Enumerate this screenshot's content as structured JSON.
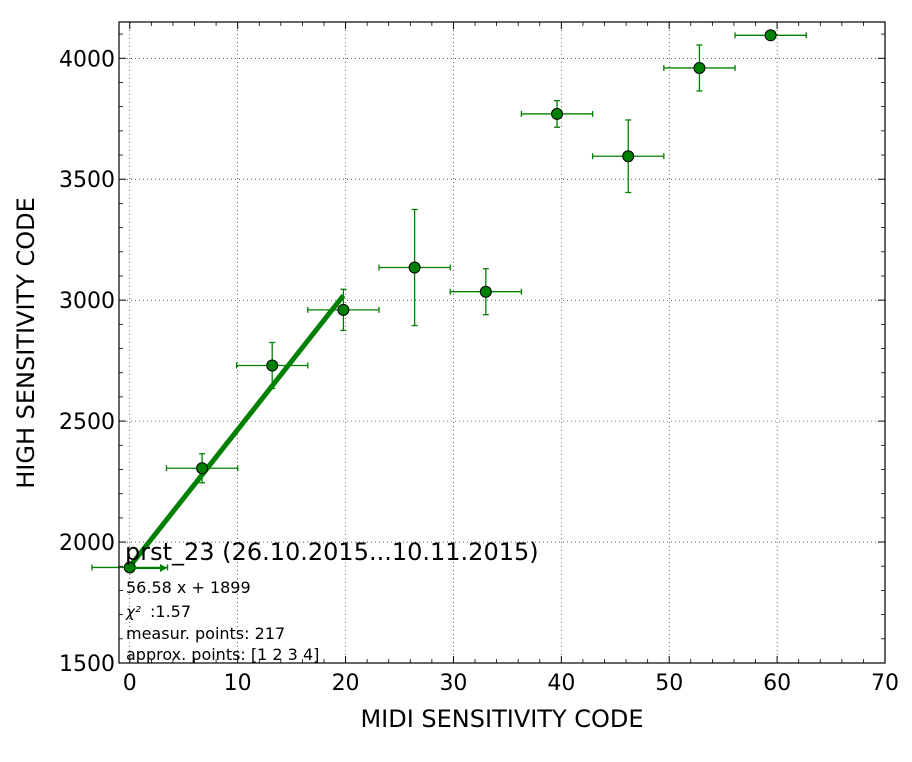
{
  "chart_data": {
    "type": "scatter",
    "title": "prst_23 (26.10.2015...10.11.2015)",
    "xlabel": "MIDI SENSITIVITY CODE",
    "ylabel": "HIGH SENSITIVITY CODE",
    "xlim": [
      -1,
      70
    ],
    "ylim": [
      1500,
      4150
    ],
    "xticks": [
      0,
      10,
      20,
      30,
      40,
      50,
      60,
      70
    ],
    "yticks": [
      1500,
      2000,
      2500,
      3000,
      3500,
      4000
    ],
    "grid": true,
    "color": "#008000",
    "series": [
      {
        "kind": "errorbar-points",
        "points": [
          {
            "x": 0,
            "y": 1895,
            "xerr": 3.5,
            "yerr": 0
          },
          {
            "x": 6.7,
            "y": 2305,
            "xerr": 3.3,
            "yerr": 60
          },
          {
            "x": 13.2,
            "y": 2730,
            "xerr": 3.3,
            "yerr": 95
          },
          {
            "x": 19.8,
            "y": 2960,
            "xerr": 3.3,
            "yerr": 85
          },
          {
            "x": 26.4,
            "y": 3135,
            "xerr": 3.3,
            "yerr": 240
          },
          {
            "x": 33.0,
            "y": 3035,
            "xerr": 3.3,
            "yerr": 95
          },
          {
            "x": 39.6,
            "y": 3770,
            "xerr": 3.3,
            "yerr": 55
          },
          {
            "x": 46.2,
            "y": 3595,
            "xerr": 3.3,
            "yerr": 150
          },
          {
            "x": 52.8,
            "y": 3960,
            "xerr": 3.3,
            "yerr": 95
          },
          {
            "x": 59.4,
            "y": 4095,
            "xerr": 3.3,
            "yerr": 0
          }
        ]
      },
      {
        "kind": "fit-line",
        "slope": 56.58,
        "intercept": 1899,
        "x_range": [
          0,
          19.8
        ]
      }
    ],
    "annotations": {
      "fit": "56.58 x + 1899",
      "chi2_symbol": "χ²",
      "chi2_value": ":1.57",
      "measur_points": "measur. points: 217",
      "approx_points": "approx. points: [1 2 3 4]"
    }
  }
}
